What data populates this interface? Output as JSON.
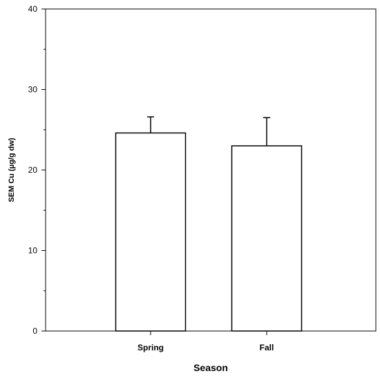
{
  "chart_data": {
    "type": "bar",
    "categories": [
      "Spring",
      "Fall"
    ],
    "values": [
      24.6,
      23.0
    ],
    "error_upper": [
      26.6,
      26.5
    ],
    "xlabel": "Season",
    "ylabel": "SEM Cu (µg/g dw)",
    "ylim": [
      0,
      40
    ],
    "y_major_ticks": [
      0,
      10,
      20,
      30,
      40
    ],
    "y_minor_step": 5,
    "grid": false,
    "legend": "none",
    "bar_fill": "#ffffff",
    "bar_stroke": "#000000",
    "axis_color": "#000000"
  }
}
